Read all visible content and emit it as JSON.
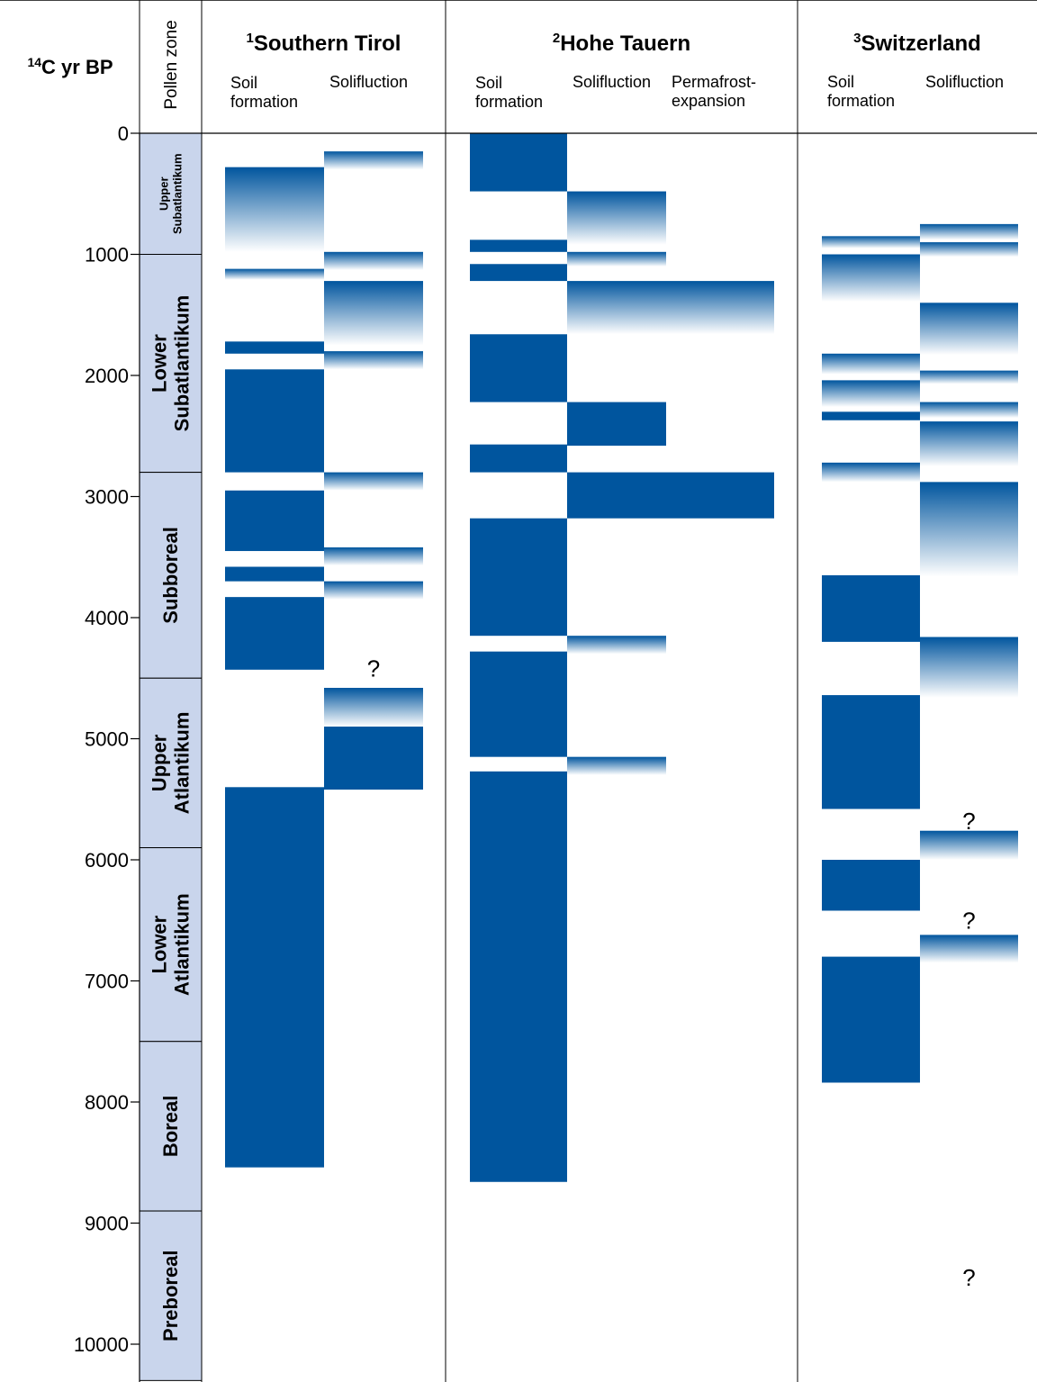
{
  "chart_data": {
    "type": "bar",
    "y_axis": {
      "label_sup": "14",
      "label": "C yr BP",
      "min": 0,
      "max": 10000,
      "ticks": [
        0,
        1000,
        2000,
        3000,
        4000,
        5000,
        6000,
        7000,
        8000,
        9000,
        10000
      ],
      "tick_labels": [
        "0",
        "1000",
        "2000",
        "3000",
        "4000",
        "5000",
        "6000",
        "7000",
        "8000",
        "9000",
        "10000"
      ]
    },
    "pollen_zone": {
      "header": "Pollen zone",
      "color": "#c9d5ec",
      "zones": [
        {
          "lines": [
            "Upper",
            "Subatlantikum"
          ],
          "from": 0,
          "to": 1000,
          "small": true
        },
        {
          "lines": [
            "Lower",
            "Subatlantikum"
          ],
          "from": 1000,
          "to": 2800
        },
        {
          "lines": [
            "Subboreal"
          ],
          "from": 2800,
          "to": 4500
        },
        {
          "lines": [
            "Upper",
            "Atlantikum"
          ],
          "from": 4500,
          "to": 5900
        },
        {
          "lines": [
            "Lower",
            "Atlantikum"
          ],
          "from": 5900,
          "to": 7500
        },
        {
          "lines": [
            "Boreal"
          ],
          "from": 7500,
          "to": 8900
        },
        {
          "lines": [
            "Preboreal"
          ],
          "from": 8900,
          "to": 10300
        }
      ]
    },
    "colors": {
      "solid": "#00559e",
      "fade_end": "#ffffff",
      "line": "#000000"
    },
    "regions": [
      {
        "sup": "1",
        "title": "Southern Tirol",
        "columns": [
          {
            "label_lines": [
              "Soil",
              "formation"
            ],
            "label_offset": 0,
            "bars": [
              {
                "from": 280,
                "to": 980,
                "style": "fade"
              },
              {
                "from": 1120,
                "to": 1210,
                "style": "fade"
              },
              {
                "from": 1720,
                "to": 1820,
                "style": "solid"
              },
              {
                "from": 1950,
                "to": 2800,
                "style": "solid"
              },
              {
                "from": 2950,
                "to": 3450,
                "style": "solid"
              },
              {
                "from": 3580,
                "to": 3700,
                "style": "solid"
              },
              {
                "from": 3830,
                "to": 4430,
                "style": "solid"
              },
              {
                "from": 5400,
                "to": 8540,
                "style": "solid"
              }
            ],
            "notes": []
          },
          {
            "label_lines": [
              "Solifluction"
            ],
            "label_offset": -1,
            "bars": [
              {
                "from": 150,
                "to": 300,
                "style": "fade"
              },
              {
                "from": 980,
                "to": 1130,
                "style": "fade"
              },
              {
                "from": 1220,
                "to": 1750,
                "style": "fade"
              },
              {
                "from": 1800,
                "to": 1950,
                "style": "fade"
              },
              {
                "from": 2800,
                "to": 2950,
                "style": "fade"
              },
              {
                "from": 3420,
                "to": 3570,
                "style": "fade"
              },
              {
                "from": 3700,
                "to": 3850,
                "style": "fade"
              },
              {
                "from": 4580,
                "to": 4900,
                "style": "fade"
              },
              {
                "from": 4900,
                "to": 5420,
                "style": "solid"
              }
            ],
            "notes": [
              {
                "text": "?",
                "at": 4420
              }
            ]
          }
        ]
      },
      {
        "sup": "2",
        "title": "Hohe Tauern",
        "columns": [
          {
            "label_lines": [
              "Soil",
              "formation"
            ],
            "label_offset": 0,
            "bars": [
              {
                "from": 0,
                "to": 480,
                "style": "solid"
              },
              {
                "from": 880,
                "to": 980,
                "style": "solid"
              },
              {
                "from": 1080,
                "to": 1220,
                "style": "solid"
              },
              {
                "from": 1660,
                "to": 2220,
                "style": "solid"
              },
              {
                "from": 2570,
                "to": 2800,
                "style": "solid"
              },
              {
                "from": 3180,
                "to": 4150,
                "style": "solid"
              },
              {
                "from": 4280,
                "to": 5150,
                "style": "solid"
              },
              {
                "from": 5270,
                "to": 8660,
                "style": "solid"
              }
            ],
            "notes": []
          },
          {
            "label_lines": [
              "Solifluction"
            ],
            "label_offset": -1,
            "bars": [
              {
                "from": 480,
                "to": 920,
                "style": "fade"
              },
              {
                "from": 980,
                "to": 1100,
                "style": "fade"
              },
              {
                "from": 1220,
                "to": 1660,
                "style": "fade"
              },
              {
                "from": 2220,
                "to": 2580,
                "style": "solid"
              },
              {
                "from": 2800,
                "to": 3180,
                "style": "solid"
              },
              {
                "from": 4150,
                "to": 4300,
                "style": "fade"
              },
              {
                "from": 5150,
                "to": 5300,
                "style": "fade"
              }
            ],
            "notes": []
          },
          {
            "label_lines": [
              "Permafrost-",
              "expansion"
            ],
            "label_offset": -1,
            "bars": [
              {
                "from": 1220,
                "to": 1660,
                "style": "fade"
              },
              {
                "from": 2800,
                "to": 3180,
                "style": "solid"
              }
            ],
            "notes": []
          }
        ]
      },
      {
        "sup": "3",
        "title": "Switzerland",
        "columns": [
          {
            "label_lines": [
              "Soil",
              "formation"
            ],
            "label_offset": -1,
            "bars": [
              {
                "from": 850,
                "to": 950,
                "style": "fade"
              },
              {
                "from": 1000,
                "to": 1390,
                "style": "fade"
              },
              {
                "from": 1820,
                "to": 1990,
                "style": "fade"
              },
              {
                "from": 2040,
                "to": 2260,
                "style": "fade"
              },
              {
                "from": 2300,
                "to": 2370,
                "style": "solid"
              },
              {
                "from": 2720,
                "to": 2880,
                "style": "fade"
              },
              {
                "from": 3650,
                "to": 4200,
                "style": "solid"
              },
              {
                "from": 4640,
                "to": 5580,
                "style": "solid"
              },
              {
                "from": 6000,
                "to": 6420,
                "style": "solid"
              },
              {
                "from": 6800,
                "to": 7840,
                "style": "solid"
              }
            ],
            "notes": []
          },
          {
            "label_lines": [
              "Solifluction"
            ],
            "label_offset": -1,
            "bars": [
              {
                "from": 750,
                "to": 880,
                "style": "fade"
              },
              {
                "from": 900,
                "to": 1020,
                "style": "fade"
              },
              {
                "from": 1400,
                "to": 1830,
                "style": "fade"
              },
              {
                "from": 1960,
                "to": 2070,
                "style": "fade"
              },
              {
                "from": 2220,
                "to": 2350,
                "style": "fade"
              },
              {
                "from": 2380,
                "to": 2750,
                "style": "fade"
              },
              {
                "from": 2880,
                "to": 3660,
                "style": "fade"
              },
              {
                "from": 4160,
                "to": 4660,
                "style": "fade"
              },
              {
                "from": 5760,
                "to": 6000,
                "style": "fade"
              },
              {
                "from": 6620,
                "to": 6850,
                "style": "fade"
              }
            ],
            "notes": [
              {
                "text": "?",
                "at": 5680
              },
              {
                "text": "?",
                "at": 6500
              },
              {
                "text": "?",
                "at": 9450
              }
            ]
          }
        ]
      }
    ]
  }
}
